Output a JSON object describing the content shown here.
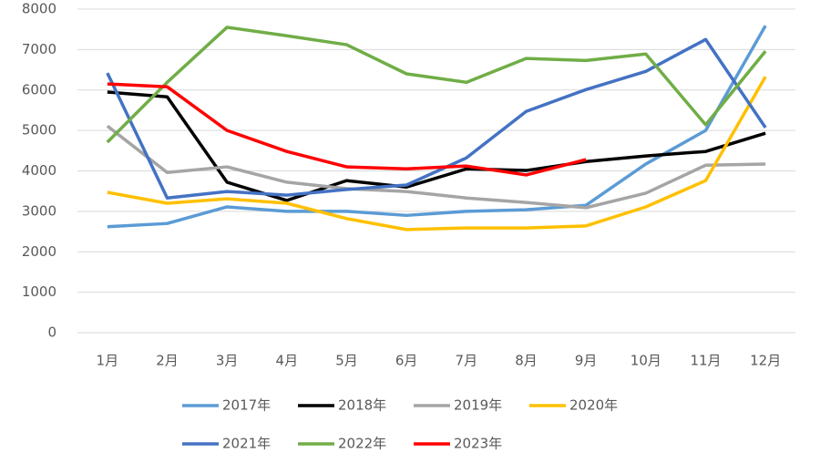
{
  "chart_data": {
    "type": "line",
    "categories": [
      "1月",
      "2月",
      "3月",
      "4月",
      "5月",
      "6月",
      "7月",
      "8月",
      "9月",
      "10月",
      "11月",
      "12月"
    ],
    "ylim": [
      0,
      8000
    ],
    "yticks": [
      0,
      1000,
      2000,
      3000,
      4000,
      5000,
      6000,
      7000,
      8000
    ],
    "grid": true,
    "legend": "bottom",
    "series": [
      {
        "name": "2017年",
        "color": "#5b9bd5",
        "values": [
          2620,
          2700,
          3110,
          3000,
          3000,
          2900,
          3000,
          3040,
          3150,
          4170,
          5000,
          7590
        ]
      },
      {
        "name": "2018年",
        "color": "#000000",
        "values": [
          5950,
          5830,
          3720,
          3270,
          3760,
          3600,
          4050,
          4010,
          4230,
          4370,
          4480,
          4930
        ]
      },
      {
        "name": "2019年",
        "color": "#a5a5a5",
        "values": [
          5110,
          3960,
          4100,
          3720,
          3560,
          3490,
          3330,
          3220,
          3090,
          3450,
          4140,
          4170
        ]
      },
      {
        "name": "2020年",
        "color": "#ffc000",
        "values": [
          3470,
          3200,
          3310,
          3200,
          2820,
          2550,
          2590,
          2590,
          2640,
          3110,
          3760,
          6330
        ]
      },
      {
        "name": "2021年",
        "color": "#4472c4",
        "values": [
          6420,
          3330,
          3490,
          3400,
          3540,
          3650,
          4320,
          5470,
          6010,
          6460,
          7250,
          5070
        ]
      },
      {
        "name": "2022年",
        "color": "#70ad47",
        "values": [
          4710,
          6190,
          7550,
          7340,
          7120,
          6400,
          6190,
          6780,
          6730,
          6890,
          5140,
          6960
        ]
      },
      {
        "name": "2023年",
        "color": "#ff0000",
        "values": [
          6150,
          6080,
          5000,
          4480,
          4100,
          4050,
          4120,
          3900,
          4280,
          null,
          null,
          null
        ]
      }
    ]
  }
}
